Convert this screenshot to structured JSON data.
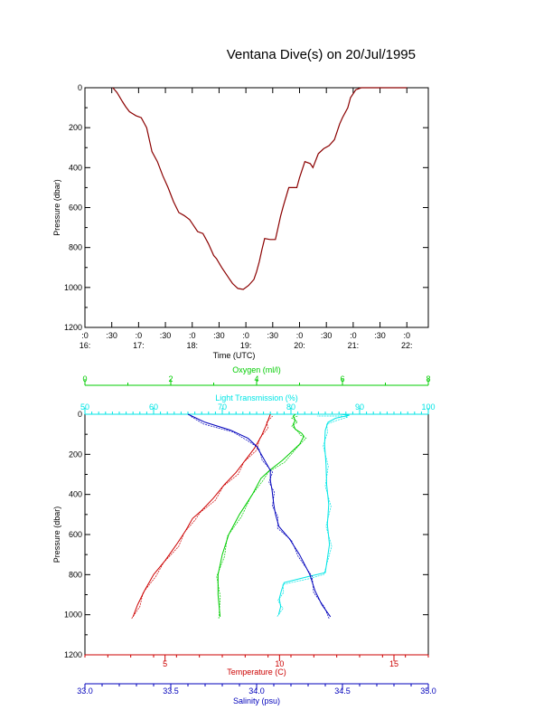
{
  "title": "Ventana Dive(s) on 20/Jul/1995",
  "chart_data": [
    {
      "type": "line",
      "xlabel": "Time (UTC)",
      "ylabel": "Pressure (dbar)",
      "x_unit": "hours UTC",
      "xlim": [
        16,
        22.4
      ],
      "ylim": [
        1200,
        0
      ],
      "y_ticks": [
        "0",
        "200",
        "400",
        "600",
        "800",
        "1000",
        "1200"
      ],
      "x_ticks": [
        {
          "x": 16,
          "top": ":0",
          "bottom": "16:"
        },
        {
          "x": 16.5,
          "top": ":30",
          "bottom": ""
        },
        {
          "x": 17,
          "top": ":0",
          "bottom": "17:"
        },
        {
          "x": 17.5,
          "top": ":30",
          "bottom": ""
        },
        {
          "x": 18,
          "top": ":0",
          "bottom": "18:"
        },
        {
          "x": 18.5,
          "top": ":30",
          "bottom": ""
        },
        {
          "x": 19,
          "top": ":0",
          "bottom": "19:"
        },
        {
          "x": 19.5,
          "top": ":30",
          "bottom": ""
        },
        {
          "x": 20,
          "top": ":0",
          "bottom": "20:"
        },
        {
          "x": 20.5,
          "top": ":30",
          "bottom": ""
        },
        {
          "x": 21,
          "top": ":0",
          "bottom": "21:"
        },
        {
          "x": 21.5,
          "top": ":30",
          "bottom": ""
        },
        {
          "x": 22,
          "top": ":0",
          "bottom": "22:"
        }
      ],
      "colors": {
        "line": "#8b0000",
        "axis": "#000000"
      },
      "series": [
        {
          "x": [
            16.52,
            16.6,
            16.7,
            16.76,
            16.83,
            16.95,
            17.05,
            17.15,
            17.25,
            17.35,
            17.45,
            17.55,
            17.65,
            17.75,
            17.85,
            17.95,
            18.0,
            18.1,
            18.2,
            18.3,
            18.4,
            18.45,
            18.55,
            18.65,
            18.75,
            18.85,
            18.95,
            19.05,
            19.15,
            19.2,
            19.25,
            19.3,
            19.35,
            19.45,
            19.55,
            19.65,
            19.7,
            19.8,
            19.95,
            20.0,
            20.1,
            20.2,
            20.25,
            20.35,
            20.45,
            20.55,
            20.65,
            20.75,
            20.8,
            20.9,
            20.95,
            21.05,
            21.15,
            21.25,
            21.35,
            21.45,
            21.55,
            21.65,
            21.7,
            21.8,
            21.9,
            21.95,
            22.0
          ],
          "y": [
            0,
            25,
            70,
            95,
            120,
            140,
            150,
            200,
            320,
            370,
            440,
            500,
            570,
            625,
            640,
            660,
            680,
            720,
            730,
            780,
            840,
            855,
            900,
            940,
            980,
            1005,
            1010,
            990,
            960,
            920,
            870,
            810,
            755,
            760,
            760,
            640,
            590,
            500,
            500,
            450,
            370,
            380,
            400,
            330,
            305,
            290,
            260,
            180,
            150,
            100,
            50,
            10,
            0,
            0,
            0,
            0,
            0,
            0,
            0,
            0,
            0,
            0,
            0
          ]
        }
      ]
    },
    {
      "type": "line",
      "ylabel": "Pressure (dbar)",
      "ylim": [
        1200,
        0
      ],
      "y_ticks": [
        "0",
        "200",
        "400",
        "600",
        "800",
        "1000",
        "1200"
      ],
      "axes": [
        {
          "position": "top-outer",
          "label": "Oxygen (ml/l)",
          "range": [
            0,
            8
          ],
          "ticks": [
            "0",
            "2",
            "4",
            "6",
            "8"
          ],
          "color": "#00cc00"
        },
        {
          "position": "top-inner",
          "label": "Light Transmission (%)",
          "range": [
            50,
            100
          ],
          "ticks": [
            "50",
            "60",
            "70",
            "80",
            "90",
            "100"
          ],
          "color": "#00e5e5"
        },
        {
          "position": "bottom-inner",
          "label": "Temperature (C)",
          "range": [
            1.5,
            16.5
          ],
          "ticks": [
            "5",
            "10",
            "15"
          ],
          "tick_values": [
            5,
            10,
            15
          ],
          "color": "#cc0000"
        },
        {
          "position": "bottom-outer",
          "label": "Salinity (psu)",
          "range": [
            33.0,
            35.0
          ],
          "ticks": [
            "33.0",
            "33.5",
            "34.0",
            "34.5",
            "35.0"
          ],
          "color": "#0000bb"
        }
      ],
      "series": [
        {
          "axis": 0,
          "color": "#00cc00",
          "x": [
            3.15,
            3.1,
            3.1,
            3.2,
            3.35,
            3.6,
            3.9,
            4.1,
            4.3,
            4.6,
            5.0,
            5.1,
            5.05,
            4.9,
            4.85,
            4.9,
            4.85,
            4.9
          ],
          "y": [
            1010,
            900,
            800,
            700,
            600,
            500,
            400,
            320,
            280,
            230,
            150,
            110,
            95,
            75,
            50,
            30,
            10,
            0
          ]
        },
        {
          "axis": 1,
          "color": "#00e5e5",
          "x": [
            78.2,
            78.5,
            78.3,
            78.6,
            79.0,
            82.5,
            85.0,
            85.6,
            85.3,
            85.5,
            85.2,
            85.1,
            84.9,
            85.0,
            85.4,
            86.5,
            88.5,
            87.0,
            84.0
          ],
          "y": [
            1000,
            960,
            920,
            880,
            840,
            810,
            790,
            650,
            550,
            450,
            350,
            250,
            150,
            80,
            40,
            20,
            5,
            0,
            0
          ]
        },
        {
          "axis": 2,
          "color": "#cc0000",
          "x": [
            3.6,
            3.8,
            4.1,
            4.5,
            5.0,
            5.5,
            5.9,
            6.2,
            6.6,
            7.1,
            7.6,
            8.1,
            8.5,
            8.9,
            9.2,
            9.4,
            9.5,
            9.6
          ],
          "y": [
            1010,
            950,
            880,
            800,
            730,
            650,
            580,
            520,
            480,
            420,
            350,
            290,
            230,
            170,
            110,
            60,
            30,
            0
          ]
        },
        {
          "axis": 3,
          "color": "#0000bb",
          "x": [
            34.43,
            34.38,
            34.34,
            34.31,
            34.25,
            34.19,
            34.13,
            34.11,
            34.1,
            34.09,
            34.08,
            34.08,
            34.04,
            34.0,
            33.95,
            33.85,
            33.7,
            33.6
          ],
          "y": [
            1010,
            950,
            880,
            800,
            700,
            620,
            560,
            500,
            450,
            380,
            330,
            280,
            220,
            160,
            120,
            80,
            40,
            0
          ]
        }
      ]
    }
  ]
}
